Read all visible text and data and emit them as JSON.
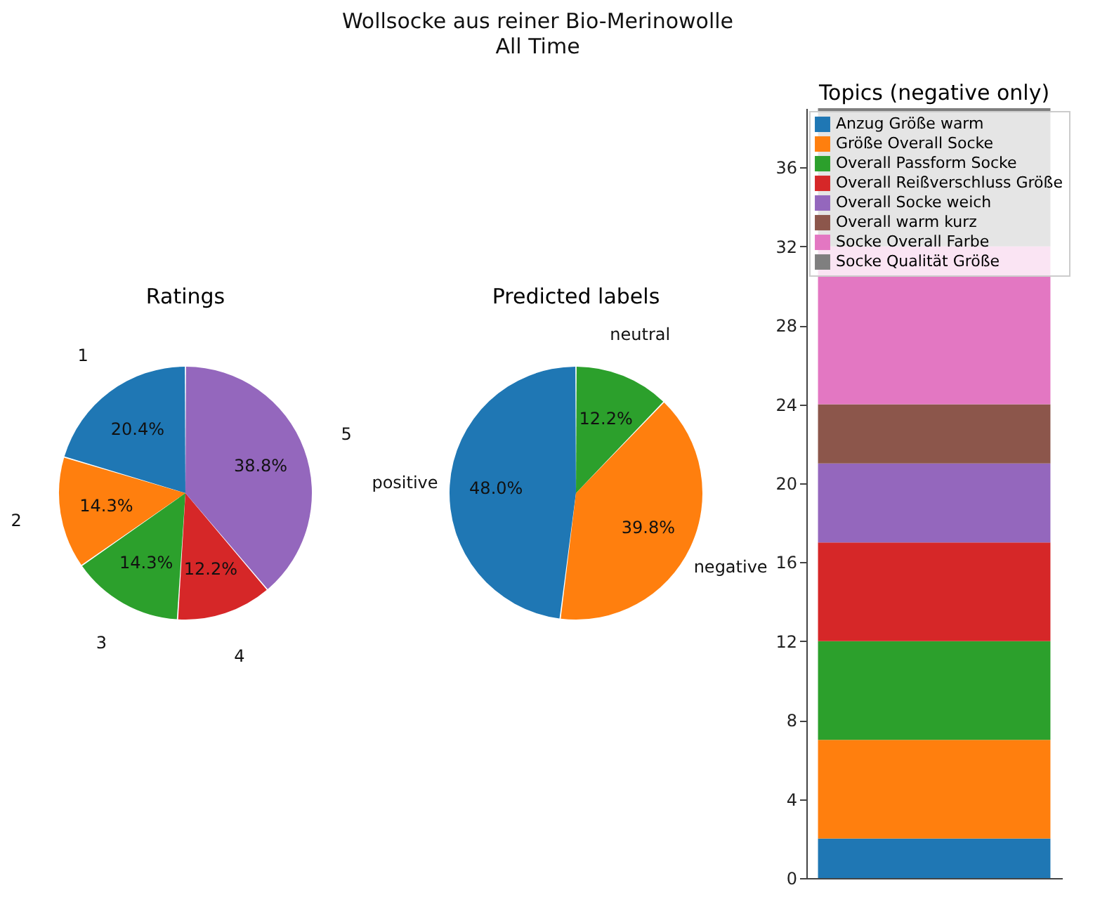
{
  "chart_data": [
    {
      "type": "pie",
      "annotations": [
        "Wollsocke aus reiner Bio-Merinowolle",
        "All Time"
      ],
      "title": "Ratings",
      "categories": [
        "1",
        "2",
        "3",
        "4",
        "5"
      ],
      "values": [
        20.4,
        14.3,
        14.3,
        12.2,
        38.8
      ],
      "colors": [
        "#1f77b4",
        "#ff7f0e",
        "#2ca02c",
        "#d62728",
        "#9467bd"
      ],
      "value_labels": [
        "20.4%",
        "14.3%",
        "14.3%",
        "12.2%",
        "38.8%"
      ]
    },
    {
      "type": "pie",
      "title": "Predicted labels",
      "categories": [
        "positive",
        "negative",
        "neutral"
      ],
      "values": [
        48.0,
        39.8,
        12.2
      ],
      "colors": [
        "#1f77b4",
        "#ff7f0e",
        "#2ca02c"
      ],
      "value_labels": [
        "48.0%",
        "39.8%",
        "12.2%"
      ]
    },
    {
      "type": "bar",
      "title": "Topics (negative only)",
      "stacked": true,
      "categories": [
        null
      ],
      "ylim": [
        0,
        39
      ],
      "yticks": [
        0,
        4,
        8,
        12,
        16,
        20,
        24,
        28,
        32,
        36
      ],
      "legend": "top left",
      "series": [
        {
          "name": "Anzug Größe warm",
          "color": "#1f77b4",
          "values": [
            2
          ]
        },
        {
          "name": "Größe Overall Socke",
          "color": "#ff7f0e",
          "values": [
            5
          ]
        },
        {
          "name": "Overall Passform Socke",
          "color": "#2ca02c",
          "values": [
            5
          ]
        },
        {
          "name": "Overall Reißverschluss Größe",
          "color": "#d62728",
          "values": [
            5
          ]
        },
        {
          "name": "Overall Socke weich",
          "color": "#9467bd",
          "values": [
            4
          ]
        },
        {
          "name": "Overall warm kurz",
          "color": "#8c564b",
          "values": [
            3
          ]
        },
        {
          "name": "Socke Overall Farbe",
          "color": "#e377c2",
          "values": [
            8
          ]
        },
        {
          "name": "Socke Qualität Größe",
          "color": "#7f7f7f",
          "values": [
            7
          ]
        }
      ]
    }
  ]
}
